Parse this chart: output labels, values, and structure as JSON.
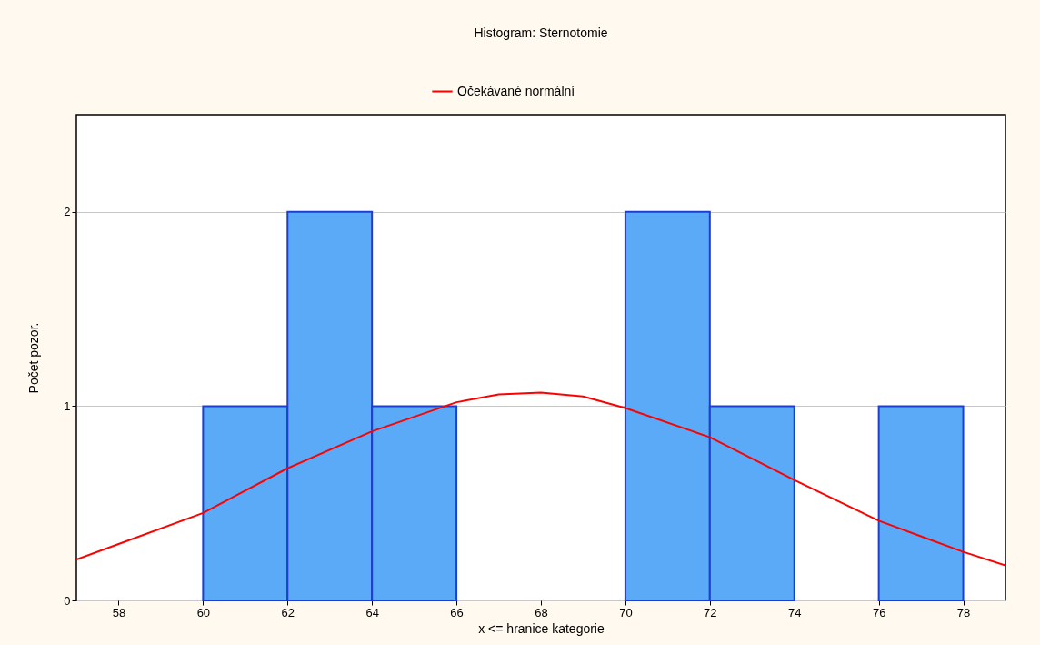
{
  "chart_data": {
    "type": "histogram",
    "title": "Histogram: Sternotomie",
    "xlabel": "x <= hranice kategorie",
    "ylabel": "Počet pozor.",
    "bins": [
      60,
      62,
      64,
      66,
      68,
      70,
      72,
      74,
      76,
      78
    ],
    "values": [
      1,
      2,
      1,
      0,
      0,
      2,
      1,
      0,
      1
    ],
    "color": "#5aaaf7",
    "series": [
      {
        "name": "Očekávané normální",
        "type": "line",
        "color": "#ff0000",
        "x": [
          57,
          58,
          60,
          62,
          64,
          66,
          67,
          68,
          69,
          70,
          72,
          74,
          76,
          78,
          79
        ],
        "values": [
          0.21,
          0.29,
          0.45,
          0.68,
          0.87,
          1.02,
          1.06,
          1.07,
          1.05,
          0.99,
          0.84,
          0.62,
          0.41,
          0.25,
          0.18
        ]
      }
    ],
    "xlim": [
      57,
      79
    ],
    "xticks": [
      58,
      60,
      62,
      64,
      66,
      68,
      70,
      72,
      74,
      76,
      78
    ],
    "ylim": [
      0,
      2.5
    ],
    "yticks": [
      0,
      1,
      2
    ],
    "grid": "y",
    "legend": "top"
  }
}
